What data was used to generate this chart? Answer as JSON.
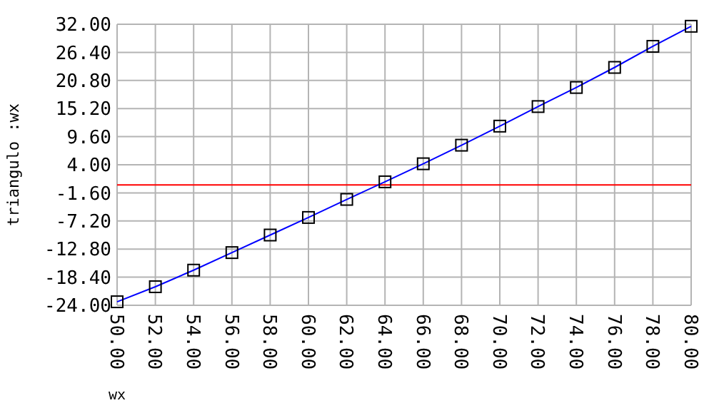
{
  "chart_data": {
    "type": "line",
    "xlabel": "wx",
    "ylabel": "triangulo :wx",
    "x": [
      50,
      52,
      54,
      56,
      58,
      60,
      62,
      64,
      66,
      68,
      70,
      72,
      74,
      76,
      78,
      80
    ],
    "series": [
      {
        "color": "#0000ff",
        "values": [
          -23.3,
          -20.3,
          -17.0,
          -13.5,
          -10.0,
          -6.5,
          -2.9,
          0.6,
          4.2,
          7.9,
          11.7,
          15.6,
          19.4,
          23.4,
          27.6,
          31.6
        ]
      }
    ],
    "xlim": [
      50,
      80
    ],
    "ylim": [
      -24,
      32
    ],
    "xticks": [
      {
        "value": 50,
        "label": "50.00"
      },
      {
        "value": 52,
        "label": "52.00"
      },
      {
        "value": 54,
        "label": "54.00"
      },
      {
        "value": 56,
        "label": "56.00"
      },
      {
        "value": 58,
        "label": "58.00"
      },
      {
        "value": 60,
        "label": "60.00"
      },
      {
        "value": 62,
        "label": "62.00"
      },
      {
        "value": 64,
        "label": "64.00"
      },
      {
        "value": 66,
        "label": "66.00"
      },
      {
        "value": 68,
        "label": "68.00"
      },
      {
        "value": 70,
        "label": "70.00"
      },
      {
        "value": 72,
        "label": "72.00"
      },
      {
        "value": 74,
        "label": "74.00"
      },
      {
        "value": 76,
        "label": "76.00"
      },
      {
        "value": 78,
        "label": "78.00"
      },
      {
        "value": 80,
        "label": "80.00"
      }
    ],
    "yticks": [
      {
        "value": -24,
        "label": "-24.00"
      },
      {
        "value": -18.4,
        "label": "-18.40"
      },
      {
        "value": -12.8,
        "label": "-12.80"
      },
      {
        "value": -7.2,
        "label": "-7.20"
      },
      {
        "value": -1.6,
        "label": "-1.60"
      },
      {
        "value": 4,
        "label": "4.00"
      },
      {
        "value": 9.6,
        "label": "9.60"
      },
      {
        "value": 15.2,
        "label": "15.20"
      },
      {
        "value": 20.8,
        "label": "20.80"
      },
      {
        "value": 26.4,
        "label": "26.40"
      },
      {
        "value": 32,
        "label": "32.00"
      }
    ],
    "ref_lines": [
      {
        "axis": "y",
        "value": 0,
        "color": "#ff0000"
      }
    ],
    "grid": true,
    "marker": "square",
    "line_style": "solid"
  }
}
